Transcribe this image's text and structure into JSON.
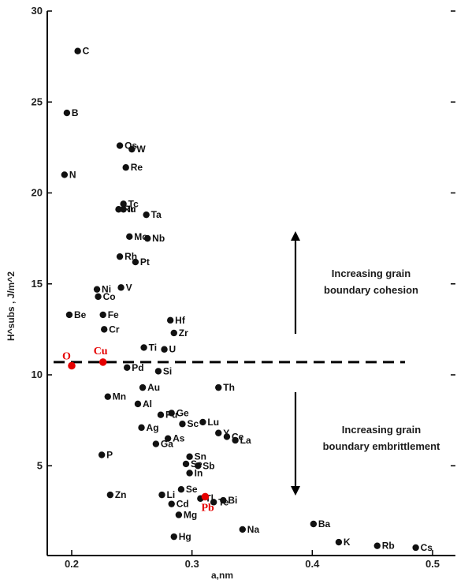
{
  "chart_data": {
    "type": "scatter",
    "xlabel": "a,nm",
    "ylabel": "H^subs , J/m^2",
    "xlim": [
      0.19,
      0.51
    ],
    "ylim": [
      0,
      30
    ],
    "x_ticks": [
      "0.2",
      "0.3",
      "0.4",
      "0.5"
    ],
    "y_ticks": [
      "5",
      "10",
      "15",
      "20",
      "25",
      "30"
    ],
    "colors": {
      "points": "#111111",
      "highlight": "#e60000",
      "axis": "#000000"
    },
    "threshold": {
      "y": 10.7,
      "style": "dashed"
    },
    "annotations": {
      "upper": [
        "Increasing grain",
        "boundary cohesion"
      ],
      "lower": [
        "Increasing grain",
        "boundary embrittlement"
      ]
    },
    "points": [
      {
        "label": "C",
        "x": 0.205,
        "y": 27.8
      },
      {
        "label": "B",
        "x": 0.196,
        "y": 24.4
      },
      {
        "label": "N",
        "x": 0.194,
        "y": 21.0
      },
      {
        "label": "Os",
        "x": 0.24,
        "y": 22.6
      },
      {
        "label": "W",
        "x": 0.25,
        "y": 22.4
      },
      {
        "label": "Re",
        "x": 0.245,
        "y": 21.4
      },
      {
        "label": "Tc",
        "x": 0.243,
        "y": 19.4
      },
      {
        "label": "Ru",
        "x": 0.239,
        "y": 19.1
      },
      {
        "label": "Ir",
        "x": 0.243,
        "y": 19.1
      },
      {
        "label": "Ta",
        "x": 0.262,
        "y": 18.8
      },
      {
        "label": "Mo",
        "x": 0.248,
        "y": 17.6
      },
      {
        "label": "Nb",
        "x": 0.263,
        "y": 17.5
      },
      {
        "label": "Rh",
        "x": 0.24,
        "y": 16.5
      },
      {
        "label": "Pt",
        "x": 0.253,
        "y": 16.2
      },
      {
        "label": "Ni",
        "x": 0.221,
        "y": 14.7
      },
      {
        "label": "V",
        "x": 0.241,
        "y": 14.8
      },
      {
        "label": "Co",
        "x": 0.222,
        "y": 14.3
      },
      {
        "label": "Be",
        "x": 0.198,
        "y": 13.3
      },
      {
        "label": "Fe",
        "x": 0.226,
        "y": 13.3
      },
      {
        "label": "Cr",
        "x": 0.227,
        "y": 12.5
      },
      {
        "label": "Hf",
        "x": 0.282,
        "y": 13.0
      },
      {
        "label": "Zr",
        "x": 0.285,
        "y": 12.3
      },
      {
        "label": "Ti",
        "x": 0.26,
        "y": 11.5
      },
      {
        "label": "U",
        "x": 0.277,
        "y": 11.4
      },
      {
        "label": "Pd",
        "x": 0.246,
        "y": 10.4
      },
      {
        "label": "Si",
        "x": 0.272,
        "y": 10.2
      },
      {
        "label": "Th",
        "x": 0.322,
        "y": 9.3
      },
      {
        "label": "Au",
        "x": 0.259,
        "y": 9.3
      },
      {
        "label": "Mn",
        "x": 0.23,
        "y": 8.8
      },
      {
        "label": "Al",
        "x": 0.255,
        "y": 8.4
      },
      {
        "label": "Ge",
        "x": 0.283,
        "y": 7.9
      },
      {
        "label": "Pu",
        "x": 0.274,
        "y": 7.8
      },
      {
        "label": "Lu",
        "x": 0.309,
        "y": 7.4
      },
      {
        "label": "Sc",
        "x": 0.292,
        "y": 7.3
      },
      {
        "label": "Ag",
        "x": 0.258,
        "y": 7.1
      },
      {
        "label": "Y",
        "x": 0.322,
        "y": 6.8
      },
      {
        "label": "Ce",
        "x": 0.329,
        "y": 6.6
      },
      {
        "label": "As",
        "x": 0.28,
        "y": 6.5
      },
      {
        "label": "La",
        "x": 0.336,
        "y": 6.4
      },
      {
        "label": "Ga",
        "x": 0.27,
        "y": 6.2
      },
      {
        "label": "P",
        "x": 0.225,
        "y": 5.6
      },
      {
        "label": "Sn",
        "x": 0.298,
        "y": 5.5
      },
      {
        "label": "Se",
        "x": 0.295,
        "y": 5.1
      },
      {
        "label": "Sb",
        "x": 0.305,
        "y": 5.0
      },
      {
        "label": "In",
        "x": 0.298,
        "y": 4.6
      },
      {
        "label": "Bi",
        "x": 0.326,
        "y": 3.1
      },
      {
        "label": "Te",
        "x": 0.318,
        "y": 3.0
      },
      {
        "label": "Zn",
        "x": 0.232,
        "y": 3.4
      },
      {
        "label": "Li",
        "x": 0.275,
        "y": 3.4
      },
      {
        "label": "Se",
        "x": 0.291,
        "y": 3.7
      },
      {
        "label": "Tl",
        "x": 0.307,
        "y": 3.2
      },
      {
        "label": "Cd",
        "x": 0.283,
        "y": 2.9
      },
      {
        "label": "Mg",
        "x": 0.289,
        "y": 2.3
      },
      {
        "label": "Na",
        "x": 0.342,
        "y": 1.5
      },
      {
        "label": "Hg",
        "x": 0.285,
        "y": 1.1
      },
      {
        "label": "Ba",
        "x": 0.401,
        "y": 1.8
      },
      {
        "label": "K",
        "x": 0.422,
        "y": 0.8
      },
      {
        "label": "Rb",
        "x": 0.454,
        "y": 0.6
      },
      {
        "label": "Cs",
        "x": 0.486,
        "y": 0.5
      }
    ],
    "highlights": [
      {
        "label": "O",
        "x": 0.2,
        "y": 10.5
      },
      {
        "label": "Cu",
        "x": 0.226,
        "y": 10.7
      },
      {
        "label": "Pb",
        "x": 0.311,
        "y": 3.3
      }
    ]
  }
}
